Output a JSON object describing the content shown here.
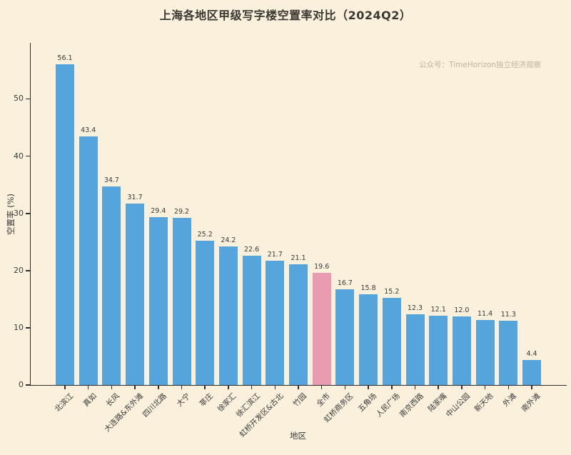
{
  "watermark": "公众号：TimeHorizon独立经济观察",
  "chart_data": {
    "type": "bar",
    "title": "上海各地区甲级写字楼空置率对比（2024Q2）",
    "xlabel": "地区",
    "ylabel": "空置率 (%)",
    "categories": [
      "北滨江",
      "真如",
      "长风",
      "大连路&东外滩",
      "四川北路",
      "大宁",
      "莘庄",
      "徐家汇",
      "徐汇滨江",
      "虹桥开发区&古北",
      "竹园",
      "全市",
      "虹桥商务区",
      "五角场",
      "人民广场",
      "南京西路",
      "陆家嘴",
      "中山公园",
      "新天地",
      "外滩",
      "南外滩"
    ],
    "values": [
      56.1,
      43.4,
      34.7,
      31.7,
      29.4,
      29.2,
      25.2,
      24.2,
      22.6,
      21.7,
      21.1,
      19.6,
      16.7,
      15.8,
      15.2,
      12.3,
      12.1,
      12.0,
      11.4,
      11.3,
      4.4
    ],
    "value_label_decimals": 1,
    "highlight_index": 11,
    "highlight_category": "全市",
    "yticks": [
      0,
      10,
      20,
      30,
      40,
      50
    ],
    "ylim": [
      0,
      59.8
    ],
    "grid": false,
    "legend": null,
    "colors": {
      "bar": "#55A5DC",
      "highlight_bar": "#E89BB1",
      "background": "#FAF0DC",
      "text": "#3A3A3A",
      "axis": "#2E2E2E",
      "watermark": "#BEB49F"
    }
  }
}
